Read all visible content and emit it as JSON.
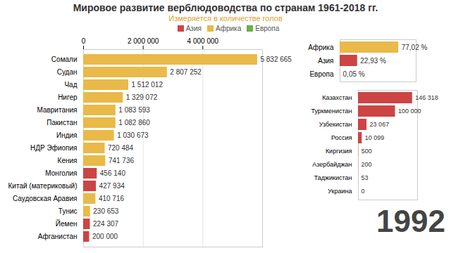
{
  "title": "Мировое развитие верблюдоводства по странам 1961-2018 гг.",
  "subtitle": "Измеряется в количестве голов",
  "year_label": "1992",
  "legend_items": [
    {
      "name": "Азия",
      "color": "#cc4444"
    },
    {
      "name": "Африка",
      "color": "#e9b949"
    },
    {
      "name": "Европа",
      "color": "#6ab04c"
    }
  ],
  "chart_data": [
    {
      "type": "bar",
      "orientation": "horizontal",
      "legend": "top",
      "data_labels": true,
      "categories": [
        "Сомали",
        "Судан",
        "Чад",
        "Нигер",
        "Мавритания",
        "Пакистан",
        "Индия",
        "НДР Эфиопия",
        "Кения",
        "Монголия",
        "Китай (материковый)",
        "Саудовская Аравия",
        "Тунис",
        "Йемен",
        "Афганистан"
      ],
      "values": [
        5832665,
        2807252,
        1512012,
        1329072,
        1083593,
        1082860,
        1030673,
        720484,
        741736,
        456140,
        427934,
        410716,
        230653,
        224307,
        200000
      ],
      "value_labels": [
        "5 832 665",
        "2 807 252",
        "1 512 012",
        "1 329 072",
        "1 083 593",
        "1 082 860",
        "1 030 673",
        "720 484",
        "741 736",
        "456 140",
        "427 934",
        "410 716",
        "230 653",
        "224 307",
        "200 000"
      ],
      "colors": [
        "#e9b949",
        "#e9b949",
        "#e9b949",
        "#e9b949",
        "#e9b949",
        "#e9b949",
        "#e9b949",
        "#e9b949",
        "#e9b949",
        "#cc4444",
        "#cc4444",
        "#e9b949",
        "#e9b949",
        "#cc4444",
        "#cc4444"
      ],
      "xlim": [
        0,
        6000000
      ],
      "xticks": [
        {
          "value": 0,
          "label": "0"
        },
        {
          "value": 2000000,
          "label": "2 000 000"
        },
        {
          "value": 4000000,
          "label": "4 000 000"
        }
      ],
      "grid": true
    },
    {
      "type": "bar",
      "orientation": "horizontal",
      "data_labels": true,
      "tick_labels": "y",
      "categories": [
        "Африка",
        "Азия",
        "Европа"
      ],
      "values": [
        77.02,
        22.93,
        0.05
      ],
      "value_labels": [
        "77,02 %",
        "22,93 %",
        "0,05 %"
      ],
      "colors": [
        "#e9b949",
        "#cc4444",
        "#6ab04c"
      ],
      "xlim": [
        0,
        100
      ],
      "xticks": []
    },
    {
      "type": "bar",
      "orientation": "horizontal",
      "data_labels": true,
      "tick_labels": "y",
      "categories": [
        "Казахстан",
        "Туркменистан",
        "Узбекистан",
        "Россия",
        "Киргизия",
        "Азербайджан",
        "Таджикистан",
        "Украина"
      ],
      "values": [
        146318,
        100000,
        23067,
        10099,
        500,
        200,
        53,
        0
      ],
      "value_labels": [
        "146 318",
        "100 000",
        "23 067",
        "10 099",
        "500",
        "200",
        "53",
        "0"
      ],
      "colors": [
        "#cc4444",
        "#cc4444",
        "#cc4444",
        "#cc4444",
        "#cc4444",
        "#cc4444",
        "#cc4444",
        "#cc4444"
      ],
      "xlim": [
        0,
        160000
      ],
      "xticks": []
    }
  ]
}
